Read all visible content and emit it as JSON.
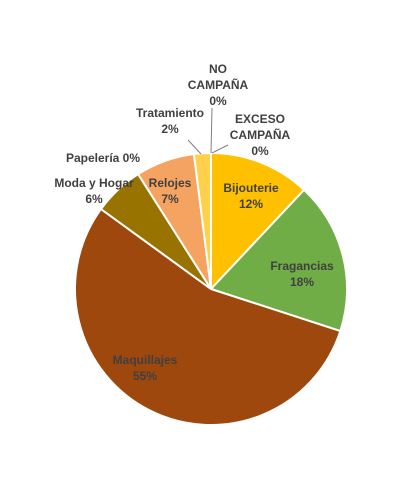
{
  "chart_data": {
    "type": "pie",
    "title": "",
    "slices": [
      {
        "name": "Bijouterie",
        "value": 12,
        "label_lines": [
          "Bijouterie",
          "12%"
        ],
        "color": "#FFC000"
      },
      {
        "name": "Fragancias",
        "value": 18,
        "label_lines": [
          "Fragancias",
          "18%"
        ],
        "color": "#70AD47"
      },
      {
        "name": "Maquillajes",
        "value": 55,
        "label_lines": [
          "Maquillajes",
          "55%"
        ],
        "color": "#9E480E"
      },
      {
        "name": "Moda y Hogar",
        "value": 6,
        "label_lines": [
          "Moda y Hogar",
          "6%"
        ],
        "color": "#997300"
      },
      {
        "name": "Papelería",
        "value": 0,
        "label_lines": [
          "Papelería 0%"
        ],
        "color": "#264478"
      },
      {
        "name": "Relojes",
        "value": 7,
        "label_lines": [
          "Relojes",
          "7%"
        ],
        "color": "#F4A460"
      },
      {
        "name": "Tratamiento",
        "value": 2,
        "label_lines": [
          "Tratamiento",
          "2%"
        ],
        "color": "#FFD04A"
      },
      {
        "name": "NO CAMPAÑA",
        "value": 0,
        "label_lines": [
          "NO",
          "CAMPAÑA",
          "0%"
        ],
        "color": "#5B9BD5"
      },
      {
        "name": "EXCESO CAMPAÑA",
        "value": 0,
        "label_lines": [
          "EXCESO",
          "CAMPAÑA",
          "0%"
        ],
        "color": "#A5A5A5"
      }
    ]
  }
}
